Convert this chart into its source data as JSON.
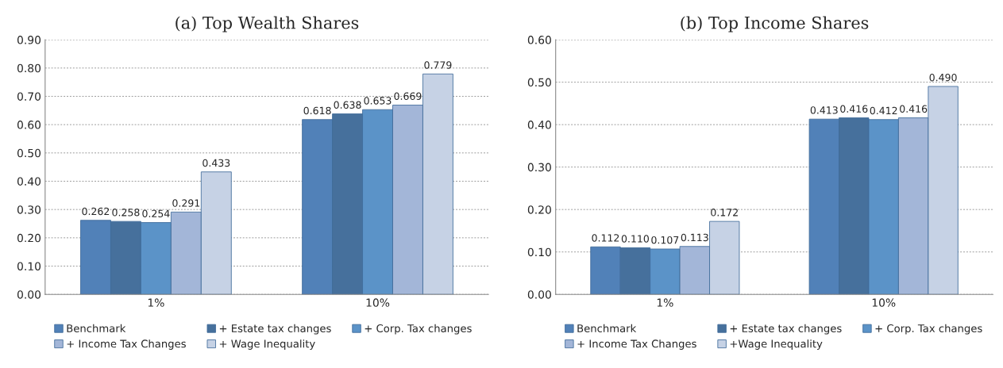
{
  "chart_data": [
    {
      "type": "bar",
      "title": "(a) Top Wealth Shares",
      "categories": [
        "1%",
        "10%"
      ],
      "series": [
        {
          "name": "Benchmark",
          "color": "#5181b8",
          "values": [
            0.262,
            0.618
          ],
          "value_labels": [
            "0.262",
            "0.618"
          ]
        },
        {
          "name": "+ Estate tax changes",
          "color": "#46709c",
          "values": [
            0.258,
            0.638
          ],
          "value_labels": [
            "0.258",
            "0.638"
          ]
        },
        {
          "name": "+ Corp. Tax changes",
          "color": "#5b93c8",
          "values": [
            0.254,
            0.653
          ],
          "value_labels": [
            "0.254",
            "0.653"
          ]
        },
        {
          "name": "+ Income Tax Changes",
          "color": "#a3b6d8",
          "values": [
            0.291,
            0.669
          ],
          "value_labels": [
            "0.291",
            "0.669"
          ]
        },
        {
          "name": "+ Wage Inequality",
          "color": "#c6d2e5",
          "values": [
            0.433,
            0.779
          ],
          "value_labels": [
            "0.433",
            "0.779"
          ]
        }
      ],
      "ylim": [
        0,
        0.9
      ],
      "yticks": [
        {
          "value": 0,
          "label": "0.00"
        },
        {
          "value": 0.1,
          "label": "0.10"
        },
        {
          "value": 0.2,
          "label": "0.20"
        },
        {
          "value": 0.3,
          "label": "0.30"
        },
        {
          "value": 0.4,
          "label": "0.40"
        },
        {
          "value": 0.5,
          "label": "0.50"
        },
        {
          "value": 0.6,
          "label": "0.60"
        },
        {
          "value": 0.7,
          "label": "0.70"
        },
        {
          "value": 0.8,
          "label": "0.80"
        },
        {
          "value": 0.9,
          "label": "0.90"
        }
      ],
      "grid": "y",
      "legend": "bottom"
    },
    {
      "type": "bar",
      "title": "(b) Top Income Shares",
      "categories": [
        "1%",
        "10%"
      ],
      "series": [
        {
          "name": "Benchmark",
          "color": "#5181b8",
          "values": [
            0.112,
            0.413
          ],
          "value_labels": [
            "0.112",
            "0.413"
          ]
        },
        {
          "name": "+ Estate tax changes",
          "color": "#46709c",
          "values": [
            0.11,
            0.416
          ],
          "value_labels": [
            "0.110",
            "0.416"
          ]
        },
        {
          "name": "+ Corp. Tax changes",
          "color": "#5b93c8",
          "values": [
            0.107,
            0.412
          ],
          "value_labels": [
            "0.107",
            "0.412"
          ]
        },
        {
          "name": "+ Income Tax Changes",
          "color": "#a3b6d8",
          "values": [
            0.113,
            0.416
          ],
          "value_labels": [
            "0.113",
            "0.416"
          ]
        },
        {
          "name": "+Wage Inequality",
          "color": "#c6d2e5",
          "values": [
            0.172,
            0.49
          ],
          "value_labels": [
            "0.172",
            "0.490"
          ]
        }
      ],
      "ylim": [
        0,
        0.6
      ],
      "yticks": [
        {
          "value": 0,
          "label": "0.00"
        },
        {
          "value": 0.1,
          "label": "0.10"
        },
        {
          "value": 0.2,
          "label": "0.20"
        },
        {
          "value": 0.3,
          "label": "0.30"
        },
        {
          "value": 0.4,
          "label": "0.40"
        },
        {
          "value": 0.5,
          "label": "0.50"
        },
        {
          "value": 0.6,
          "label": "0.60"
        }
      ],
      "grid": "y",
      "legend": "bottom"
    }
  ]
}
